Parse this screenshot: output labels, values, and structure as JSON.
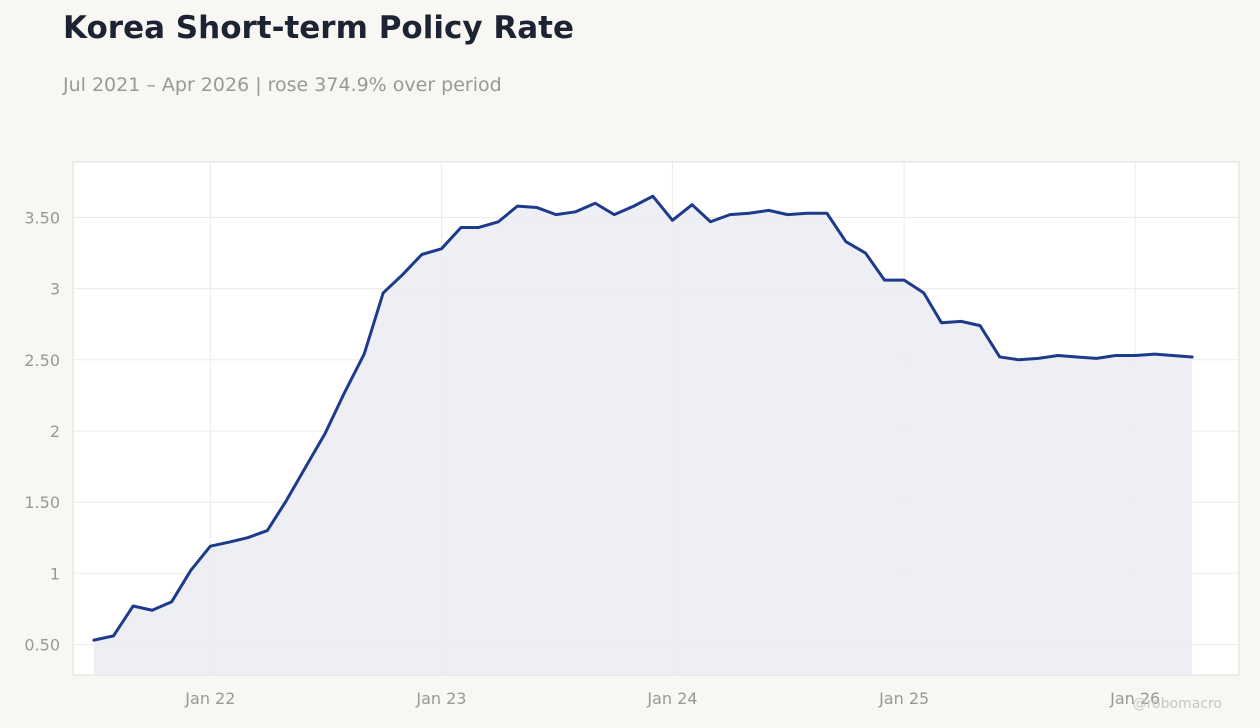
{
  "header": {
    "title": "Korea Short-term Policy Rate",
    "subtitle": "Jul 2021 – Apr 2026 | rose 374.9% over period"
  },
  "watermark": "@robomacro",
  "colors": {
    "line": "#1e3a8a",
    "area": "#edeef4",
    "grid": "#ecebe8",
    "text_muted": "#9a9894"
  },
  "chart_data": {
    "type": "area",
    "title": "Korea Short-term Policy Rate",
    "subtitle": "Jul 2021 – Apr 2026 | rose 374.9% over period",
    "xlabel": "",
    "ylabel": "",
    "x_ticks": [
      {
        "label": "Jan 22",
        "date": "2022-01-01"
      },
      {
        "label": "Jan 23",
        "date": "2023-01-01"
      },
      {
        "label": "Jan 24",
        "date": "2024-01-01"
      },
      {
        "label": "Jan 25",
        "date": "2025-01-01"
      },
      {
        "label": "Jan 26",
        "date": "2026-01-01"
      }
    ],
    "y_ticks": [
      {
        "label": "0.50",
        "value": 0.5
      },
      {
        "label": "1",
        "value": 1
      },
      {
        "label": "1.50",
        "value": 1.5
      },
      {
        "label": "2",
        "value": 2
      },
      {
        "label": "2.50",
        "value": 2.5
      },
      {
        "label": "3",
        "value": 3
      },
      {
        "label": "3.50",
        "value": 3.5
      }
    ],
    "xlim": [
      "2021-05-29",
      "2026-06-14"
    ],
    "ylim": [
      0.285,
      3.89
    ],
    "grid": true,
    "legend": "none",
    "series": [
      {
        "x": [
          "2021-07-01",
          "2021-08-01",
          "2021-09-01",
          "2021-10-01",
          "2021-11-01",
          "2021-12-01",
          "2022-01-01",
          "2022-02-01",
          "2022-03-01",
          "2022-04-01",
          "2022-05-01",
          "2022-06-01",
          "2022-07-01",
          "2022-08-01",
          "2022-09-01",
          "2022-10-01",
          "2022-11-01",
          "2022-12-01",
          "2023-01-01",
          "2023-02-01",
          "2023-03-01",
          "2023-04-01",
          "2023-05-01",
          "2023-06-01",
          "2023-07-01",
          "2023-08-01",
          "2023-09-01",
          "2023-10-01",
          "2023-11-01",
          "2023-12-01",
          "2024-01-01",
          "2024-02-01",
          "2024-03-01",
          "2024-04-01",
          "2024-05-01",
          "2024-06-01",
          "2024-07-01",
          "2024-08-01",
          "2024-09-01",
          "2024-10-01",
          "2024-11-01",
          "2024-12-01",
          "2025-01-01",
          "2025-02-01",
          "2025-03-01",
          "2025-04-01",
          "2025-05-01",
          "2025-06-01",
          "2025-07-01",
          "2025-08-01",
          "2025-09-01",
          "2025-10-01",
          "2025-11-01",
          "2025-12-01",
          "2026-01-01",
          "2026-02-01",
          "2026-03-01",
          "2026-04-01"
        ],
        "values": [
          0.53,
          0.56,
          0.77,
          0.74,
          0.8,
          1.02,
          1.19,
          1.22,
          1.25,
          1.3,
          1.51,
          1.75,
          1.98,
          2.27,
          2.54,
          2.97,
          3.1,
          3.24,
          3.28,
          3.43,
          3.43,
          3.47,
          3.58,
          3.57,
          3.52,
          3.54,
          3.6,
          3.52,
          3.58,
          3.65,
          3.48,
          3.59,
          3.47,
          3.52,
          3.53,
          3.55,
          3.52,
          3.53,
          3.53,
          3.33,
          3.25,
          3.06,
          3.06,
          2.97,
          2.76,
          2.77,
          2.74,
          2.52,
          2.5,
          2.51,
          2.53,
          2.52,
          2.51,
          2.53,
          2.53,
          2.54,
          2.53,
          2.52
        ]
      }
    ]
  }
}
